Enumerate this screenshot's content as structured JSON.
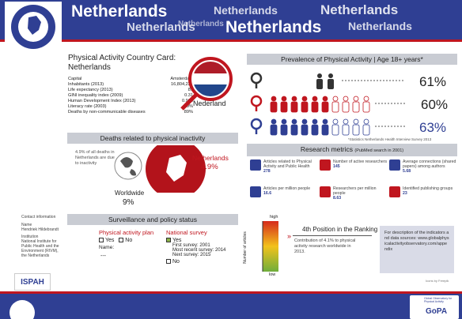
{
  "header": {
    "banner": [
      "Netherlands",
      "Netherlands",
      "Netherlands",
      "Netherlands",
      "Netherlands",
      "Netherlands",
      "Netherlands"
    ]
  },
  "card": {
    "title": "Physical Activity Country Card: Netherlands",
    "facts": [
      {
        "label": "Capital",
        "value": "Amsterdam"
      },
      {
        "label": "Inhabitants (2013)",
        "value": "16,804,224"
      },
      {
        "label": "Life expectancy (2013)",
        "value": "81"
      },
      {
        "label": "GINI inequality index (2009)",
        "value": "0.31"
      },
      {
        "label": "Human Development Index (2013)",
        "value": "0.915"
      },
      {
        "label": "Literacy rate (2003)",
        "value": "99%"
      },
      {
        "label": "Deaths by non-communicable diseases",
        "value": "89%"
      }
    ],
    "flag_label": "Nederland"
  },
  "deaths": {
    "title": "Deaths related to physical inactivity",
    "note": "4.9% of all deaths in Netherlands are due to inactivity",
    "country": "Netherlands",
    "country_value": "4.9%",
    "world": "Worldwide",
    "world_value": "9%"
  },
  "contact": {
    "title": "Contact information",
    "name_label": "Name",
    "name": "Hendriek Hildebrandt",
    "institution_label": "Institution",
    "institution": "National Institute for Public Health and the Environment (RIVM), the Netherlands"
  },
  "surveillance": {
    "title": "Surveillance and  policy status",
    "plan": {
      "title": "Physical activity plan",
      "yes": "Yes",
      "no": "No",
      "name_label": "Name:",
      "name": "---"
    },
    "survey": {
      "title": "National survey",
      "yes": "Yes",
      "first": "First survey: 2001",
      "recent": "Most recent survey: 2014",
      "next": "Next survey: 2015",
      "no": "No"
    }
  },
  "prevalence": {
    "title": "Prevalence of Physical Activity",
    "subtitle": "| Age 18+ years*",
    "rows": [
      {
        "group": "all",
        "value": "61%"
      },
      {
        "group": "women",
        "value": "60%"
      },
      {
        "group": "men",
        "value": "63%"
      }
    ],
    "footnote": "*Statistics Netherlands Health Interview Survey 2013"
  },
  "research": {
    "title": "Research metrics",
    "subtitle": "(PubMed search in 2001)",
    "items": [
      {
        "label": "Articles related to Physical Activity and Public Health",
        "value": "278"
      },
      {
        "label": "Number of active researchers",
        "value": "145"
      },
      {
        "label": "Average connections (shared papers) among authors",
        "value": "5.68"
      },
      {
        "label": "Articles per million people",
        "value": "16.6"
      },
      {
        "label": "Researchers per million people",
        "value": "8.63"
      },
      {
        "label": "Identified publishing groups",
        "value": "23"
      }
    ],
    "ranking": {
      "high": "high",
      "low": "low",
      "axis": "Number of articles",
      "position": "4th Position in the Ranking",
      "contribution": "Contribution of 4.1% to physical activity research worldwide in 2013."
    },
    "info": "For description of the indicators and data sources: www.globalphysicalactivityobservatory.com/appendix",
    "credit": "Icons by Freepik"
  },
  "footer": {
    "ispah": "ISPAH",
    "gopa": "GoPA",
    "gopa_full": "Global Observatory for Physical Activity"
  }
}
